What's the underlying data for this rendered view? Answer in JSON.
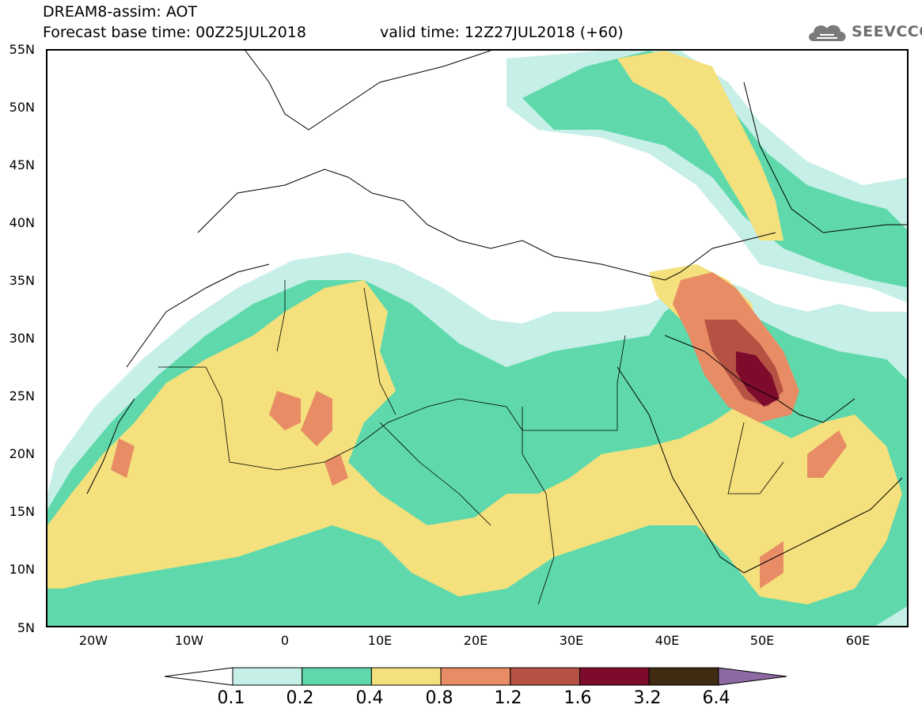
{
  "header": {
    "title_line1": "DREAM8-assim: AOT",
    "base_time": "Forecast base time: 00Z25JUL2018",
    "valid_time": "valid time: 12Z27JUL2018 (+60)"
  },
  "logo": {
    "text": "SEEVCCC",
    "icon": "cloud-icon"
  },
  "axes": {
    "lat_labels": [
      "55N",
      "50N",
      "45N",
      "40N",
      "35N",
      "30N",
      "25N",
      "20N",
      "15N",
      "10N",
      "5N"
    ],
    "lon_labels": [
      "20W",
      "10W",
      "0",
      "10E",
      "20E",
      "30E",
      "40E",
      "50E",
      "60E"
    ],
    "lat_range": [
      5,
      55
    ],
    "lon_range": [
      -25,
      65
    ]
  },
  "legend": {
    "labels": [
      "0.1",
      "0.2",
      "0.4",
      "0.8",
      "1.2",
      "1.6",
      "3.2",
      "6.4"
    ],
    "colors": [
      "#ffffff",
      "#c6efe7",
      "#5fd9ac",
      "#f4e07c",
      "#e88c66",
      "#b55243",
      "#7e0b2c",
      "#3f2a12",
      "#8e6aa5"
    ]
  },
  "map": {
    "region": "North Africa, Middle East and Europe",
    "field": "Aerosol Optical Thickness"
  }
}
